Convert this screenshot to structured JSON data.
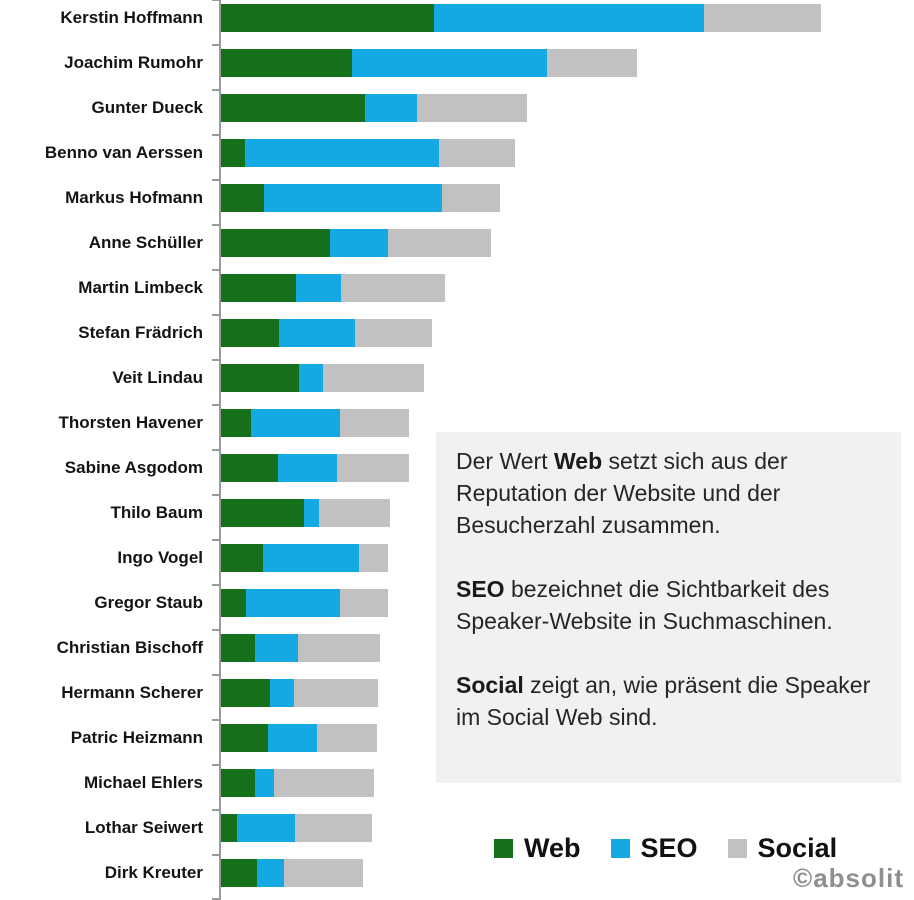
{
  "chart_data": {
    "type": "bar",
    "orientation": "horizontal",
    "stacked": true,
    "title": "",
    "xlabel": "",
    "ylabel": "",
    "grid": false,
    "legend_position": "bottom-right",
    "value_unit": "relative score (no numeric axis shown in image; values estimated in pixels)",
    "xlim": [
      0,
      695
    ],
    "categories": [
      "Kerstin Hoffmann",
      "Joachim Rumohr",
      "Gunter Dueck",
      "Benno van Aerssen",
      "Markus Hofmann",
      "Anne Schüller",
      "Martin Limbeck",
      "Stefan Frädrich",
      "Veit Lindau",
      "Thorsten Havener",
      "Sabine Asgodom",
      "Thilo Baum",
      "Ingo Vogel",
      "Gregor Staub",
      "Christian Bischoff",
      "Hermann Scherer",
      "Patric Heizmann",
      "Michael Ehlers",
      "Lothar Seiwert",
      "Dirk Kreuter"
    ],
    "series": [
      {
        "name": "Web",
        "color": "#16701B",
        "values": [
          213,
          131,
          144,
          24,
          43,
          109,
          75,
          58,
          78,
          30,
          57,
          83,
          42,
          25,
          34,
          49,
          47,
          34,
          16,
          36
        ]
      },
      {
        "name": "SEO",
        "color": "#14A9E3",
        "values": [
          270,
          195,
          52,
          194,
          178,
          58,
          45,
          76,
          24,
          89,
          59,
          15,
          96,
          94,
          43,
          24,
          49,
          19,
          58,
          27
        ]
      },
      {
        "name": "Social",
        "color": "#C1C1C1",
        "values": [
          117,
          90,
          110,
          76,
          58,
          103,
          104,
          77,
          101,
          69,
          72,
          71,
          29,
          48,
          82,
          84,
          60,
          100,
          77,
          79
        ]
      }
    ]
  },
  "legend": {
    "items": [
      {
        "label": "Web",
        "color": "#16701B"
      },
      {
        "label": "SEO",
        "color": "#14A9E3"
      },
      {
        "label": "Social",
        "color": "#C1C1C1"
      }
    ]
  },
  "annotation": {
    "paragraphs": [
      [
        {
          "text": "Der Wert ",
          "bold": false
        },
        {
          "text": "Web",
          "bold": true
        },
        {
          "text": " setzt sich aus der Reputation der Website und der Besucherzahl zusammen.",
          "bold": false
        }
      ],
      [
        {
          "text": "SEO",
          "bold": true
        },
        {
          "text": " bezeichnet die Sichtbarkeit des Speaker-Website in Suchmaschinen.",
          "bold": false
        }
      ],
      [
        {
          "text": "Social",
          "bold": true
        },
        {
          "text": " zeigt an, wie präsent die Speaker im Social Web sind.",
          "bold": false
        }
      ]
    ]
  },
  "watermark": "©absolit"
}
